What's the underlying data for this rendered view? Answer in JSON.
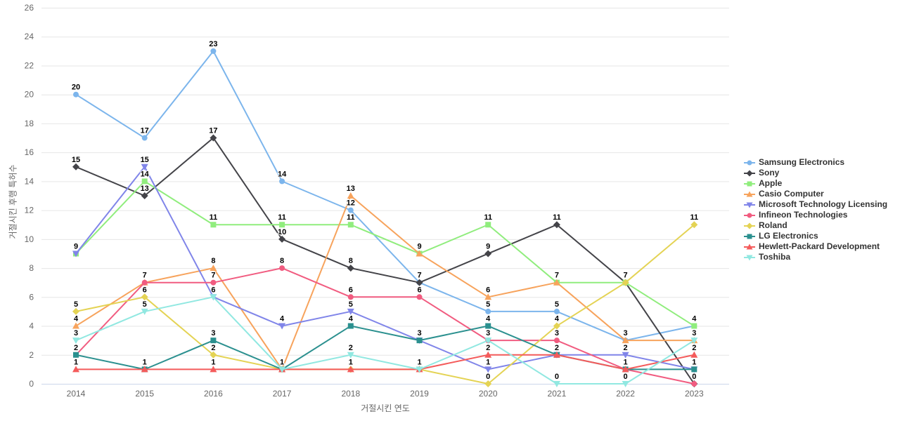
{
  "chart_data": {
    "type": "line",
    "title": "",
    "xlabel": "거절시킨 연도",
    "ylabel": "거절시킨 후행 특허수",
    "x": [
      2014,
      2015,
      2016,
      2017,
      2018,
      2019,
      2020,
      2021,
      2022,
      2023
    ],
    "ylim": [
      0,
      26
    ],
    "ytick_step": 2,
    "grid": true,
    "legend_position": "right",
    "data_labels": true,
    "series": [
      {
        "name": "Samsung Electronics",
        "color": "#7cb5ec",
        "marker": "circle",
        "values": [
          20,
          17,
          23,
          14,
          12,
          7,
          5,
          5,
          3,
          4
        ]
      },
      {
        "name": "Sony",
        "color": "#434348",
        "marker": "diamond",
        "values": [
          15,
          13,
          17,
          10,
          8,
          7,
          9,
          11,
          7,
          0
        ]
      },
      {
        "name": "Apple",
        "color": "#90ed7d",
        "marker": "square",
        "values": [
          9,
          14,
          11,
          11,
          11,
          9,
          11,
          7,
          7,
          4
        ]
      },
      {
        "name": "Casio Computer",
        "color": "#f7a35c",
        "marker": "triangle",
        "values": [
          4,
          7,
          8,
          1,
          13,
          9,
          6,
          7,
          3,
          3
        ]
      },
      {
        "name": "Microsoft Technology Licensing",
        "color": "#8085e9",
        "marker": "triangle-down",
        "values": [
          9,
          15,
          6,
          4,
          5,
          3,
          1,
          2,
          2,
          1
        ]
      },
      {
        "name": "Infineon Technologies",
        "color": "#f15c80",
        "marker": "circle",
        "values": [
          2,
          7,
          7,
          8,
          6,
          6,
          3,
          3,
          1,
          0
        ]
      },
      {
        "name": "Roland",
        "color": "#e4d354",
        "marker": "diamond",
        "values": [
          5,
          6,
          2,
          1,
          1,
          1,
          0,
          4,
          7,
          11
        ]
      },
      {
        "name": "LG Electronics",
        "color": "#2b908f",
        "marker": "square",
        "values": [
          2,
          1,
          3,
          1,
          4,
          3,
          4,
          2,
          1,
          1
        ]
      },
      {
        "name": "Hewlett-Packard Development",
        "color": "#f45b5b",
        "marker": "triangle",
        "values": [
          1,
          1,
          1,
          1,
          1,
          1,
          2,
          2,
          1,
          2
        ]
      },
      {
        "name": "Toshiba",
        "color": "#91e8e1",
        "marker": "triangle-down",
        "values": [
          3,
          5,
          6,
          1,
          2,
          1,
          3,
          0,
          0,
          3
        ]
      }
    ]
  },
  "colors": {
    "background": "#ffffff",
    "gridline": "#e6e6e6",
    "axis_line": "#ccd6eb",
    "tick_label": "#666666",
    "axis_title": "#666666",
    "legend_text": "#333333",
    "data_label": "#000000"
  }
}
